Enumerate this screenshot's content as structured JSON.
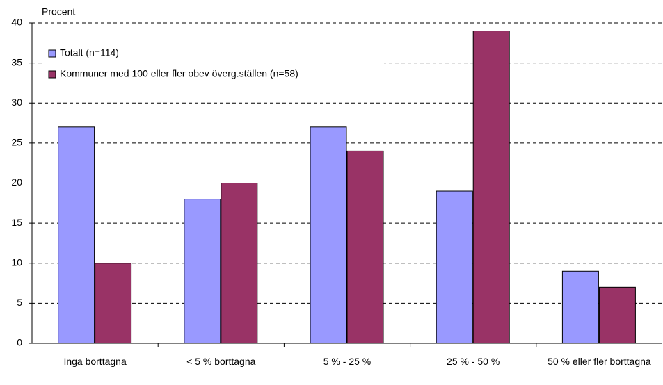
{
  "chart_data": {
    "type": "bar",
    "y_label": "Procent",
    "categories": [
      "Inga borttagna",
      "< 5 % borttagna",
      "5 % - 25 %",
      "25 % - 50 %",
      "50 % eller fler borttagna"
    ],
    "series": [
      {
        "name": "Totalt (n=114)",
        "color": "#9999ff",
        "values": [
          27,
          18,
          27,
          19,
          9
        ]
      },
      {
        "name": "Kommuner med 100 eller fler obev överg.ställen (n=58)",
        "color": "#993366",
        "values": [
          10,
          20,
          24,
          39,
          7
        ]
      }
    ],
    "ylim": [
      0,
      40
    ],
    "yticks": [
      0,
      5,
      10,
      15,
      20,
      25,
      30,
      35,
      40
    ],
    "grid": true,
    "legend": "top-left"
  }
}
